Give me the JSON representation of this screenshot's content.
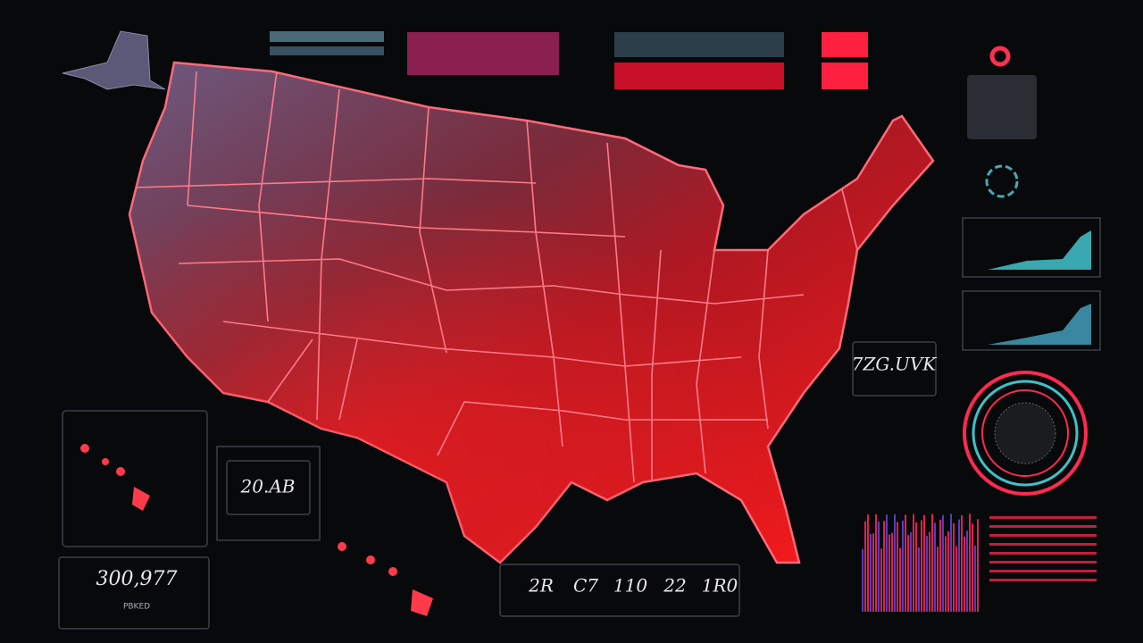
{
  "readouts": {
    "right": "7ZG.UVK",
    "center_left": "20.AB",
    "bottom_left": {
      "value": "300,977",
      "caption": "PBKED"
    }
  },
  "stats": [
    "2R",
    "C7",
    "110",
    "22",
    "1R0"
  ]
}
